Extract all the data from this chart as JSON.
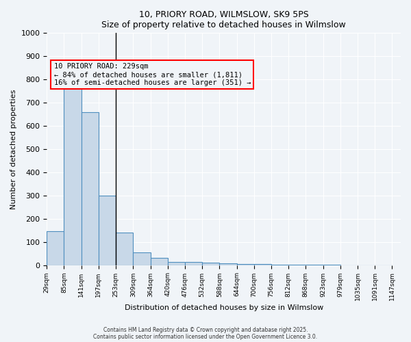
{
  "title": "10, PRIORY ROAD, WILMSLOW, SK9 5PS",
  "subtitle": "Size of property relative to detached houses in Wilmslow",
  "xlabel": "Distribution of detached houses by size in Wilmslow",
  "ylabel": "Number of detached properties",
  "bar_color": "#c8d8e8",
  "bar_edge_color": "#4f8fbf",
  "background_color": "#f0f4f8",
  "grid_color": "#ffffff",
  "bins": [
    29,
    85,
    141,
    197,
    253,
    309,
    364,
    420,
    476,
    532,
    588,
    644,
    700,
    756,
    812,
    868,
    923,
    979,
    1035,
    1091,
    1147
  ],
  "bin_labels": [
    "29sqm",
    "85sqm",
    "141sqm",
    "197sqm",
    "253sqm",
    "309sqm",
    "364sqm",
    "420sqm",
    "476sqm",
    "532sqm",
    "588sqm",
    "644sqm",
    "700sqm",
    "756sqm",
    "812sqm",
    "868sqm",
    "923sqm",
    "979sqm",
    "1035sqm",
    "1091sqm",
    "1147sqm"
  ],
  "values": [
    145,
    800,
    660,
    300,
    140,
    55,
    30,
    15,
    15,
    10,
    8,
    5,
    5,
    3,
    1,
    1,
    3,
    0,
    0,
    0
  ],
  "ylim": [
    0,
    1000
  ],
  "property_line_x": 3,
  "property_sqm": 229,
  "annotation_text": "10 PRIORY ROAD: 229sqm\n← 84% of detached houses are smaller (1,811)\n16% of semi-detached houses are larger (351) →",
  "footnote1": "Contains HM Land Registry data © Crown copyright and database right 2025.",
  "footnote2": "Contains public sector information licensed under the Open Government Licence 3.0."
}
